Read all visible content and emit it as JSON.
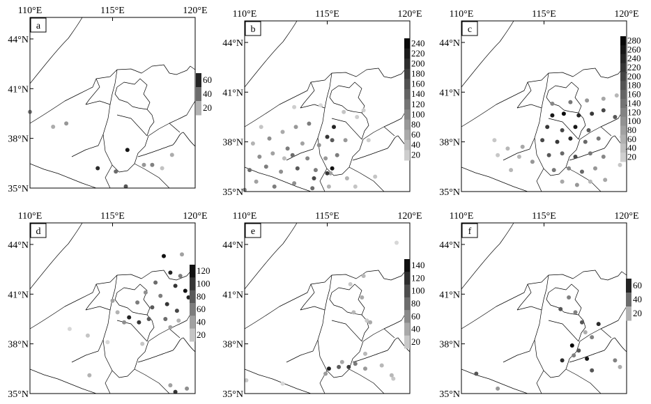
{
  "figure": {
    "x_ticks": [
      "110°E",
      "115°E",
      "120°E"
    ],
    "y_ticks": [
      "44°N",
      "41°N",
      "38°N",
      "35°N"
    ],
    "x_tick_values": [
      110,
      115,
      120
    ],
    "y_tick_values": [
      44,
      41,
      38,
      35
    ],
    "xlim": [
      110,
      120
    ],
    "ylim": [
      35,
      45.3
    ]
  },
  "chart_data": [
    {
      "type": "scatter",
      "panel": "a",
      "colorbar_ticks": [
        "20",
        "40",
        "60"
      ],
      "colorbar_range": [
        20,
        70
      ],
      "points": [
        [
          110.0,
          39.6,
          40
        ],
        [
          112.2,
          38.9,
          35
        ],
        [
          111.4,
          38.7,
          30
        ],
        [
          115.9,
          37.3,
          65
        ],
        [
          114.1,
          36.2,
          60
        ],
        [
          115.2,
          36.0,
          45
        ],
        [
          116.9,
          36.4,
          35
        ],
        [
          118.6,
          37.0,
          30
        ],
        [
          117.4,
          36.4,
          40
        ],
        [
          115.8,
          35.1,
          50
        ],
        [
          118.0,
          36.2,
          25
        ]
      ]
    },
    {
      "type": "scatter",
      "panel": "b",
      "colorbar_ticks": [
        "20",
        "40",
        "60",
        "80",
        "100",
        "120",
        "140",
        "160",
        "180",
        "200",
        "220",
        "240"
      ],
      "colorbar_range": [
        20,
        260
      ],
      "points": [
        [
          110.5,
          37.9,
          60
        ],
        [
          111.5,
          38.2,
          100
        ],
        [
          112.3,
          38.6,
          70
        ],
        [
          113.1,
          38.9,
          90
        ],
        [
          113.9,
          39.1,
          120
        ],
        [
          112.6,
          37.6,
          120
        ],
        [
          113.5,
          37.9,
          80
        ],
        [
          114.5,
          37.8,
          100
        ],
        [
          115.3,
          38.1,
          160
        ],
        [
          116.1,
          38.1,
          90
        ],
        [
          110.9,
          37.1,
          100
        ],
        [
          111.7,
          37.3,
          80
        ],
        [
          112.9,
          37.2,
          140
        ],
        [
          113.8,
          37.0,
          110
        ],
        [
          114.9,
          37.0,
          90
        ],
        [
          115.6,
          37.2,
          120
        ],
        [
          110.3,
          36.3,
          140
        ],
        [
          111.3,
          36.5,
          120
        ],
        [
          112.2,
          36.2,
          100
        ],
        [
          113.2,
          36.4,
          160
        ],
        [
          114.3,
          36.3,
          120
        ],
        [
          115.2,
          36.1,
          80
        ],
        [
          116.2,
          35.8,
          60
        ],
        [
          110.7,
          35.6,
          80
        ],
        [
          111.8,
          35.3,
          120
        ],
        [
          113.0,
          35.5,
          100
        ],
        [
          114.1,
          35.2,
          140
        ],
        [
          115.1,
          35.3,
          60
        ],
        [
          110.0,
          35.1,
          100
        ],
        [
          116.7,
          35.3,
          40
        ],
        [
          115.4,
          38.9,
          220
        ],
        [
          115.0,
          38.3,
          200
        ],
        [
          115.3,
          36.4,
          240
        ],
        [
          115.0,
          36.1,
          200
        ],
        [
          114.2,
          35.8,
          180
        ],
        [
          117.9,
          35.9,
          40
        ],
        [
          117.2,
          39.9,
          30
        ],
        [
          116.0,
          39.8,
          40
        ],
        [
          117.5,
          38.1,
          30
        ],
        [
          113.0,
          40.1,
          30
        ],
        [
          114.6,
          40.2,
          20
        ],
        [
          116.8,
          39.5,
          30
        ],
        [
          112.4,
          37.0,
          50
        ],
        [
          111.0,
          38.9,
          40
        ]
      ]
    },
    {
      "type": "scatter",
      "panel": "c",
      "colorbar_ticks": [
        "20",
        "40",
        "60",
        "80",
        "100",
        "120",
        "140",
        "160",
        "180",
        "200",
        "220",
        "240",
        "260",
        "280"
      ],
      "colorbar_range": [
        20,
        290
      ],
      "points": [
        [
          115.5,
          39.6,
          260
        ],
        [
          116.2,
          39.7,
          280
        ],
        [
          117.1,
          39.6,
          240
        ],
        [
          117.9,
          39.7,
          220
        ],
        [
          118.6,
          39.9,
          200
        ],
        [
          119.3,
          39.5,
          180
        ],
        [
          115.2,
          38.9,
          220
        ],
        [
          116.1,
          38.7,
          200
        ],
        [
          116.9,
          38.9,
          260
        ],
        [
          117.7,
          38.7,
          180
        ],
        [
          114.9,
          38.1,
          200
        ],
        [
          115.8,
          38.0,
          220
        ],
        [
          116.6,
          38.2,
          240
        ],
        [
          117.5,
          38.0,
          160
        ],
        [
          118.3,
          38.2,
          140
        ],
        [
          115.3,
          37.2,
          180
        ],
        [
          116.1,
          37.3,
          160
        ],
        [
          116.9,
          37.1,
          200
        ],
        [
          117.8,
          37.3,
          140
        ],
        [
          118.6,
          37.1,
          120
        ],
        [
          115.6,
          36.3,
          140
        ],
        [
          116.5,
          36.4,
          120
        ],
        [
          117.3,
          36.2,
          160
        ],
        [
          118.1,
          36.4,
          100
        ],
        [
          116.1,
          35.6,
          80
        ],
        [
          117.0,
          35.4,
          100
        ],
        [
          117.8,
          35.6,
          60
        ],
        [
          118.7,
          35.7,
          80
        ],
        [
          112.0,
          38.1,
          40
        ],
        [
          112.8,
          37.6,
          60
        ],
        [
          113.7,
          37.7,
          80
        ],
        [
          113.5,
          37.1,
          60
        ],
        [
          114.3,
          36.8,
          100
        ],
        [
          115.5,
          40.3,
          120
        ],
        [
          116.6,
          40.4,
          140
        ],
        [
          117.6,
          40.5,
          100
        ],
        [
          118.6,
          40.6,
          80
        ],
        [
          119.4,
          40.8,
          60
        ],
        [
          112.2,
          37.2,
          40
        ],
        [
          113.0,
          36.3,
          60
        ],
        [
          119.6,
          36.6,
          40
        ],
        [
          119.7,
          38.3,
          30
        ]
      ]
    },
    {
      "type": "scatter",
      "panel": "d",
      "colorbar_ticks": [
        "20",
        "40",
        "60",
        "80",
        "100",
        "120"
      ],
      "colorbar_range": [
        20,
        140
      ],
      "points": [
        [
          118.1,
          43.3,
          130
        ],
        [
          119.2,
          43.4,
          50
        ],
        [
          118.5,
          42.3,
          120
        ],
        [
          119.1,
          42.1,
          70
        ],
        [
          118.8,
          41.5,
          110
        ],
        [
          119.4,
          41.2,
          130
        ],
        [
          119.6,
          40.8,
          120
        ],
        [
          117.6,
          41.7,
          80
        ],
        [
          117.0,
          41.1,
          60
        ],
        [
          116.5,
          40.5,
          70
        ],
        [
          117.4,
          40.2,
          90
        ],
        [
          118.3,
          40.4,
          110
        ],
        [
          118.9,
          40.0,
          100
        ],
        [
          116.0,
          39.6,
          120
        ],
        [
          116.6,
          39.3,
          110
        ],
        [
          117.2,
          39.5,
          90
        ],
        [
          118.2,
          39.5,
          80
        ],
        [
          115.3,
          39.9,
          40
        ],
        [
          115.7,
          39.3,
          60
        ],
        [
          118.5,
          39.0,
          50
        ],
        [
          115.0,
          40.6,
          50
        ],
        [
          117.9,
          40.9,
          70
        ],
        [
          119.0,
          39.4,
          40
        ],
        [
          113.5,
          38.5,
          30
        ],
        [
          112.4,
          38.9,
          20
        ],
        [
          114.7,
          38.1,
          20
        ],
        [
          113.6,
          36.1,
          40
        ],
        [
          118.5,
          35.5,
          50
        ],
        [
          118.8,
          35.1,
          110
        ],
        [
          119.5,
          35.3,
          60
        ],
        [
          116.8,
          38.0,
          30
        ]
      ]
    },
    {
      "type": "scatter",
      "panel": "e",
      "colorbar_ticks": [
        "20",
        "40",
        "60",
        "80",
        "100",
        "120",
        "140"
      ],
      "colorbar_range": [
        20,
        160
      ],
      "points": [
        [
          119.2,
          44.1,
          20
        ],
        [
          117.2,
          42.1,
          40
        ],
        [
          116.4,
          41.6,
          30
        ],
        [
          117.1,
          40.8,
          50
        ],
        [
          116.6,
          39.9,
          40
        ],
        [
          117.4,
          39.4,
          30
        ],
        [
          117.6,
          39.3,
          50
        ],
        [
          117.3,
          37.4,
          40
        ],
        [
          115.1,
          36.5,
          140
        ],
        [
          115.7,
          36.6,
          100
        ],
        [
          116.3,
          36.6,
          120
        ],
        [
          116.7,
          36.8,
          80
        ],
        [
          117.3,
          36.5,
          60
        ],
        [
          118.3,
          36.7,
          40
        ],
        [
          119.0,
          35.9,
          30
        ],
        [
          115.9,
          36.9,
          50
        ],
        [
          114.9,
          36.2,
          60
        ],
        [
          112.3,
          35.6,
          20
        ],
        [
          110.1,
          35.8,
          30
        ],
        [
          118.9,
          36.1,
          40
        ]
      ]
    },
    {
      "type": "scatter",
      "panel": "f",
      "colorbar_ticks": [
        "20",
        "40",
        "60"
      ],
      "colorbar_range": [
        20,
        70
      ],
      "points": [
        [
          116.5,
          40.8,
          40
        ],
        [
          116.0,
          40.1,
          50
        ],
        [
          116.9,
          39.9,
          40
        ],
        [
          117.3,
          39.3,
          50
        ],
        [
          118.3,
          39.2,
          60
        ],
        [
          117.5,
          38.7,
          30
        ],
        [
          117.9,
          38.4,
          40
        ],
        [
          116.7,
          37.9,
          70
        ],
        [
          117.1,
          37.6,
          50
        ],
        [
          117.6,
          37.1,
          65
        ],
        [
          116.8,
          37.3,
          40
        ],
        [
          116.1,
          37.0,
          60
        ],
        [
          119.3,
          37.0,
          40
        ],
        [
          119.6,
          36.6,
          30
        ],
        [
          110.9,
          36.2,
          50
        ],
        [
          112.2,
          35.3,
          35
        ],
        [
          117.9,
          36.4,
          50
        ]
      ]
    }
  ]
}
